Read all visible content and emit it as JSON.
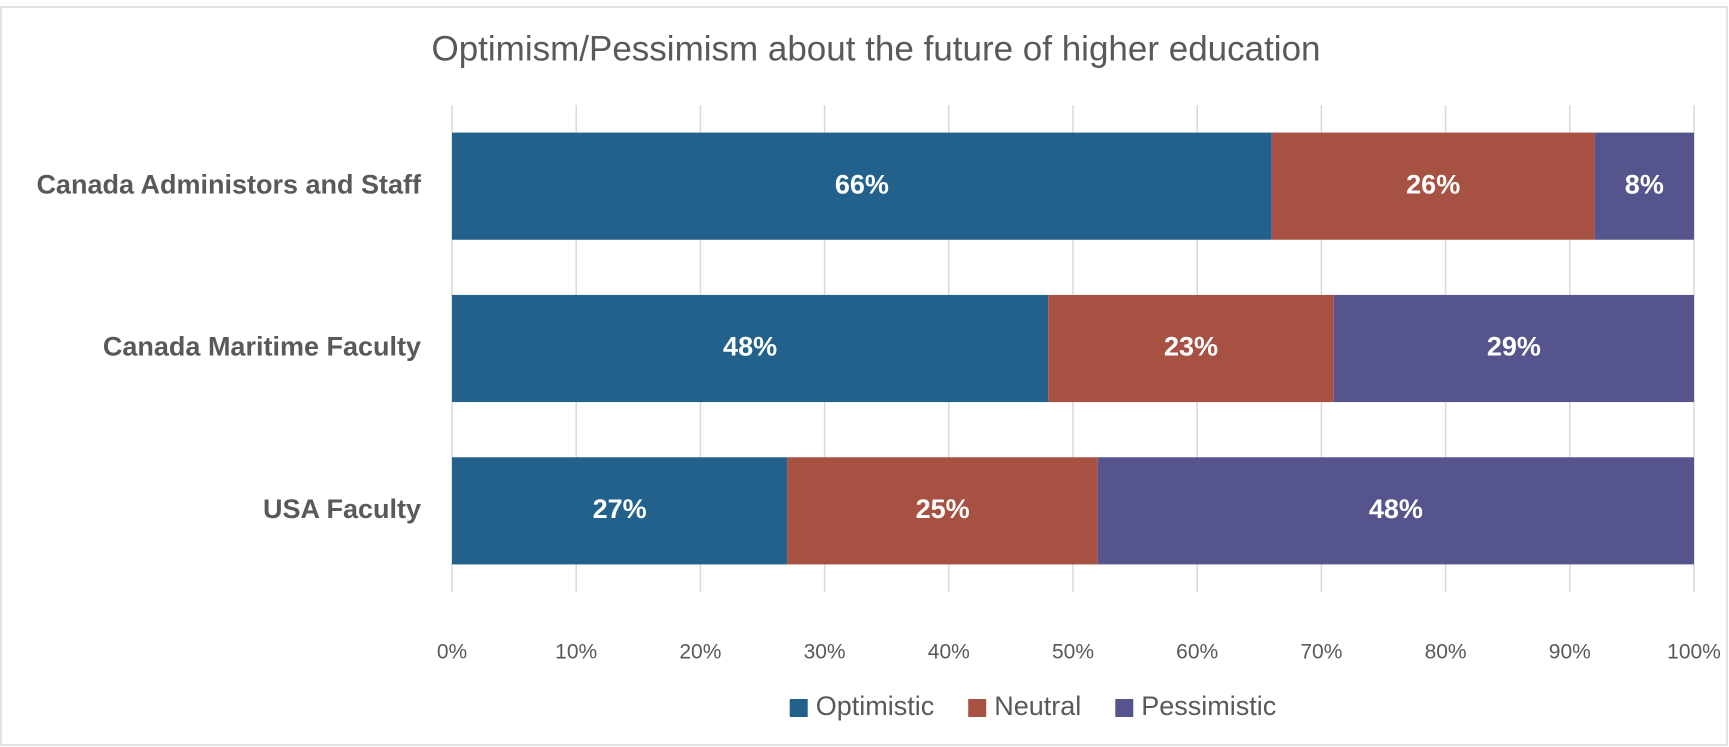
{
  "chart_data": {
    "type": "stacked_bar_horizontal",
    "title": "Optimism/Pessimism about the future of higher education",
    "categories": [
      "Canada Administors and Staff",
      "Canada Maritime Faculty",
      "USA Faculty"
    ],
    "series": [
      {
        "name": "Optimistic",
        "color": "#22618b",
        "values": [
          66,
          48,
          27
        ],
        "value_labels": [
          "66%",
          "48%",
          "27%"
        ]
      },
      {
        "name": "Neutral",
        "color": "#a65142",
        "values": [
          26,
          23,
          25
        ],
        "value_labels": [
          "26%",
          "23%",
          "25%"
        ]
      },
      {
        "name": "Pessimistic",
        "color": "#55548c",
        "values": [
          8,
          29,
          48
        ],
        "value_labels": [
          "8%",
          "29%",
          "48%"
        ]
      }
    ],
    "xlim": [
      0,
      100
    ],
    "xticks": [
      {
        "value": 0,
        "label": "0%"
      },
      {
        "value": 10,
        "label": "10%"
      },
      {
        "value": 20,
        "label": "20%"
      },
      {
        "value": 30,
        "label": "30%"
      },
      {
        "value": 40,
        "label": "40%"
      },
      {
        "value": 50,
        "label": "50%"
      },
      {
        "value": 60,
        "label": "60%"
      },
      {
        "value": 70,
        "label": "70%"
      },
      {
        "value": 80,
        "label": "80%"
      },
      {
        "value": 90,
        "label": "90%"
      },
      {
        "value": 100,
        "label": "100%"
      }
    ],
    "grid": true,
    "legend": "bottom"
  }
}
